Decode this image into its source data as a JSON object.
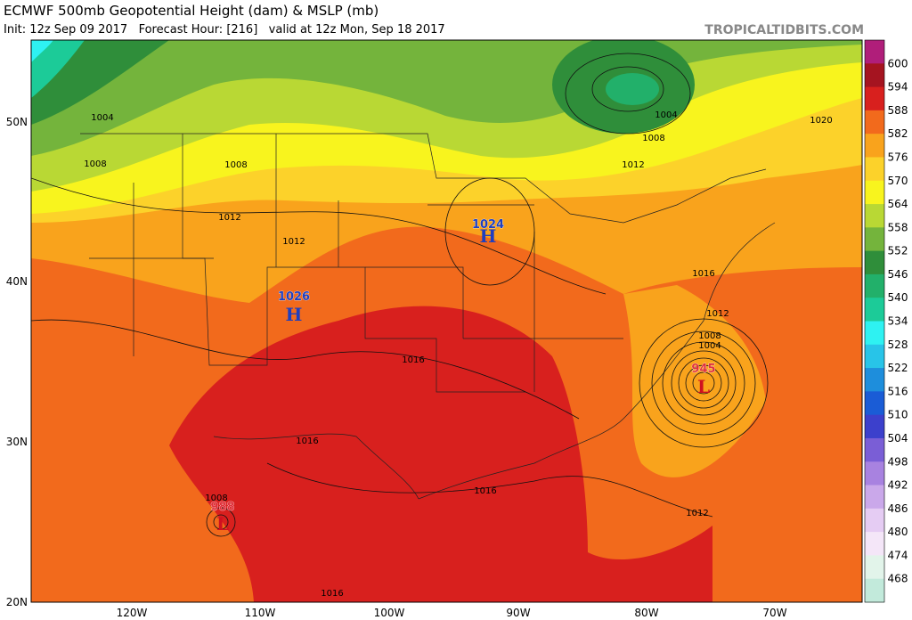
{
  "header": {
    "title": "ECMWF 500mb Geopotential Height (dam) & MSLP (mb)",
    "subtitle": "Init: 12z Sep 09 2017   Forecast Hour: [216]   valid at 12z Mon, Sep 18 2017",
    "watermark": "TROPICALTIDBITS.COM"
  },
  "map": {
    "latitude_labels": [
      "50N",
      "40N",
      "30N",
      "20N"
    ],
    "longitude_labels": [
      "120W",
      "110W",
      "100W",
      "90W",
      "80W",
      "70W"
    ],
    "isobar_labels": [
      "1004",
      "1008",
      "1008",
      "1012",
      "1012",
      "1016",
      "1016",
      "1016",
      "1016",
      "1008",
      "1004",
      "1008",
      "1012",
      "1020",
      "1016",
      "1012",
      "1008",
      "1004",
      "1012"
    ],
    "pressure_centers": [
      {
        "pressure": "1024",
        "symbol": "H"
      },
      {
        "pressure": "1026",
        "symbol": "H"
      },
      {
        "pressure": "988",
        "symbol": "L"
      },
      {
        "pressure": "945",
        "symbol": "L"
      }
    ]
  },
  "colorbar": {
    "labels": [
      "600",
      "594",
      "588",
      "582",
      "576",
      "570",
      "564",
      "558",
      "552",
      "546",
      "540",
      "534",
      "528",
      "522",
      "516",
      "510",
      "504",
      "498",
      "492",
      "486",
      "480",
      "474",
      "468"
    ],
    "colors": [
      "#b01e7a",
      "#a51420",
      "#d8201e",
      "#f26a1c",
      "#f9a31c",
      "#fcd22a",
      "#f8f41e",
      "#b9d834",
      "#74b43c",
      "#2f8e3a",
      "#22b06a",
      "#1ccb98",
      "#2ef2f2",
      "#28c4e8",
      "#1e8edc",
      "#1a5cd6",
      "#3c40cc",
      "#7a5ed6",
      "#a882e0",
      "#caa8ea",
      "#e5ccf3",
      "#f4e6f8",
      "#e2f4ea",
      "#c2eadb"
    ]
  }
}
